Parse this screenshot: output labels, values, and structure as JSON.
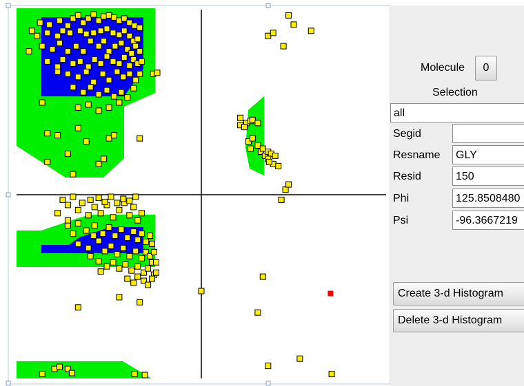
{
  "panel": {
    "molecule_label": "Molecule",
    "molecule_button": "0",
    "selection_label": "Selection",
    "selection_value": "all",
    "segid_label": "Segid",
    "segid_value": "",
    "resname_label": "Resname",
    "resname_value": "GLY",
    "resid_label": "Resid",
    "resid_value": "150",
    "phi_label": "Phi",
    "phi_value": "125.8508480",
    "psi_label": "Psi",
    "psi_value": "-96.3667219",
    "create_button": "Create 3-d Histogram",
    "delete_button": "Delete 3-d Histogram"
  },
  "colors": {
    "allowed_region": "#00ee00",
    "favored_region": "#0000ee",
    "point_fill": "#ffee00",
    "point_stroke": "#000000",
    "highlight_point": "#ff0000",
    "axis": "#000000"
  },
  "plot": {
    "points": [
      [
        -157,
        168
      ],
      [
        -148,
        166
      ],
      [
        -138,
        170
      ],
      [
        -130,
        165
      ],
      [
        -125,
        172
      ],
      [
        -120,
        175
      ],
      [
        -115,
        168
      ],
      [
        -110,
        172
      ],
      [
        -105,
        176
      ],
      [
        -100,
        170
      ],
      [
        -95,
        174
      ],
      [
        -90,
        175
      ],
      [
        -85,
        173
      ],
      [
        -80,
        170
      ],
      [
        -75,
        172
      ],
      [
        -70,
        168
      ],
      [
        -65,
        165
      ],
      [
        -60,
        163
      ],
      [
        -165,
        160
      ],
      [
        -160,
        155
      ],
      [
        -150,
        158
      ],
      [
        -140,
        155
      ],
      [
        -135,
        160
      ],
      [
        -128,
        158
      ],
      [
        -118,
        160
      ],
      [
        -112,
        157
      ],
      [
        -105,
        158
      ],
      [
        -98,
        160
      ],
      [
        -92,
        162
      ],
      [
        -86,
        158
      ],
      [
        -80,
        156
      ],
      [
        -75,
        160
      ],
      [
        -70,
        155
      ],
      [
        -66,
        150
      ],
      [
        -62,
        152
      ],
      [
        -168,
        140
      ],
      [
        -155,
        145
      ],
      [
        -145,
        142
      ],
      [
        -138,
        148
      ],
      [
        -130,
        140
      ],
      [
        -122,
        145
      ],
      [
        -115,
        140
      ],
      [
        -108,
        150
      ],
      [
        -100,
        145
      ],
      [
        -95,
        150
      ],
      [
        -90,
        140
      ],
      [
        -84,
        145
      ],
      [
        -78,
        148
      ],
      [
        -72,
        142
      ],
      [
        -68,
        138
      ],
      [
        -64,
        145
      ],
      [
        -60,
        140
      ],
      [
        -150,
        130
      ],
      [
        -140,
        125
      ],
      [
        -135,
        132
      ],
      [
        -125,
        128
      ],
      [
        -118,
        130
      ],
      [
        -110,
        125
      ],
      [
        -104,
        132
      ],
      [
        -98,
        128
      ],
      [
        -92,
        135
      ],
      [
        -86,
        130
      ],
      [
        -80,
        128
      ],
      [
        -75,
        134
      ],
      [
        -70,
        126
      ],
      [
        -66,
        132
      ],
      [
        -62,
        128
      ],
      [
        -58,
        130
      ],
      [
        -140,
        120
      ],
      [
        -130,
        118
      ],
      [
        -120,
        115
      ],
      [
        -112,
        120
      ],
      [
        -105,
        110
      ],
      [
        -96,
        118
      ],
      [
        -90,
        112
      ],
      [
        -82,
        120
      ],
      [
        -76,
        115
      ],
      [
        -70,
        118
      ],
      [
        -64,
        112
      ],
      [
        -60,
        118
      ],
      [
        -125,
        105
      ],
      [
        -115,
        100
      ],
      [
        -108,
        105
      ],
      [
        -100,
        98
      ],
      [
        -92,
        102
      ],
      [
        -85,
        96
      ],
      [
        -78,
        100
      ],
      [
        -72,
        95
      ],
      [
        -66,
        104
      ],
      [
        -155,
        90
      ],
      [
        -120,
        85
      ],
      [
        -110,
        88
      ],
      [
        -100,
        82
      ],
      [
        -90,
        85
      ],
      [
        -80,
        90
      ],
      [
        -47,
        118
      ],
      [
        -43,
        119
      ],
      [
        -150,
        60
      ],
      [
        -140,
        58
      ],
      [
        -120,
        65
      ],
      [
        -112,
        52
      ],
      [
        -90,
        55
      ],
      [
        -85,
        58
      ],
      [
        -130,
        40
      ],
      [
        -100,
        30
      ],
      [
        -95,
        35
      ],
      [
        -150,
        32
      ],
      [
        -125,
        20
      ],
      [
        -60,
        55
      ],
      [
        -140,
        -18
      ],
      [
        -130,
        -10
      ],
      [
        -120,
        -15
      ],
      [
        -110,
        -20
      ],
      [
        -104,
        -12
      ],
      [
        -98,
        -18
      ],
      [
        -92,
        -10
      ],
      [
        -86,
        -22
      ],
      [
        -80,
        -15
      ],
      [
        -75,
        -8
      ],
      [
        -70,
        -20
      ],
      [
        -66,
        -12
      ],
      [
        -62,
        -25
      ],
      [
        -58,
        -18
      ],
      [
        -135,
        -5
      ],
      [
        -125,
        -2
      ],
      [
        -116,
        -8
      ],
      [
        -108,
        -5
      ],
      [
        -100,
        -3
      ],
      [
        -94,
        -7
      ],
      [
        -88,
        -2
      ],
      [
        -82,
        -8
      ],
      [
        -76,
        -4
      ],
      [
        -70,
        -6
      ],
      [
        -64,
        -2
      ],
      [
        -130,
        -30
      ],
      [
        -120,
        -28
      ],
      [
        -112,
        -35
      ],
      [
        -104,
        -30
      ],
      [
        -96,
        -38
      ],
      [
        -90,
        -32
      ],
      [
        -84,
        -40
      ],
      [
        -78,
        -34
      ],
      [
        -72,
        -42
      ],
      [
        -66,
        -36
      ],
      [
        -62,
        -44
      ],
      [
        -58,
        -38
      ],
      [
        -54,
        -46
      ],
      [
        -120,
        -48
      ],
      [
        -110,
        -52
      ],
      [
        -100,
        -45
      ],
      [
        -94,
        -55
      ],
      [
        -88,
        -50
      ],
      [
        -82,
        -58
      ],
      [
        -76,
        -52
      ],
      [
        -70,
        -60
      ],
      [
        -64,
        -55
      ],
      [
        -58,
        -62
      ],
      [
        -54,
        -56
      ],
      [
        -50,
        -60
      ],
      [
        -100,
        -65
      ],
      [
        -92,
        -70
      ],
      [
        -86,
        -66
      ],
      [
        -80,
        -72
      ],
      [
        -74,
        -68
      ],
      [
        -68,
        -74
      ],
      [
        -62,
        -70
      ],
      [
        -56,
        -76
      ],
      [
        -52,
        -72
      ],
      [
        -48,
        -66
      ],
      [
        -46,
        -78
      ],
      [
        -125,
        -38
      ],
      [
        -130,
        -25
      ],
      [
        -105,
        -40
      ],
      [
        -108,
        -60
      ],
      [
        -98,
        -75
      ],
      [
        -72,
        -82
      ],
      [
        -66,
        -86
      ],
      [
        -62,
        -80
      ],
      [
        -56,
        -84
      ],
      [
        -52,
        -88
      ],
      [
        -48,
        -82
      ],
      [
        -44,
        -76
      ],
      [
        -44,
        -66
      ],
      [
        -46,
        -56
      ],
      [
        -48,
        -48
      ],
      [
        -50,
        -40
      ],
      [
        -80,
        -100
      ],
      [
        -60,
        -105
      ],
      [
        -120,
        -110
      ],
      [
        -155,
        -175
      ],
      [
        -143,
        -170
      ],
      [
        -138,
        -168
      ],
      [
        -130,
        -170
      ],
      [
        -126,
        -174
      ],
      [
        -65,
        -175
      ],
      [
        -55,
        -176
      ],
      [
        0,
        -94
      ],
      [
        65,
        155
      ],
      [
        70,
        158
      ],
      [
        85,
        175
      ],
      [
        90,
        166
      ],
      [
        107,
        160
      ],
      [
        80,
        145
      ],
      [
        38,
        75
      ],
      [
        38,
        68
      ],
      [
        44,
        70
      ],
      [
        48,
        72
      ],
      [
        42,
        66
      ],
      [
        50,
        73
      ],
      [
        55,
        70
      ],
      [
        46,
        52
      ],
      [
        50,
        55
      ],
      [
        55,
        48
      ],
      [
        48,
        45
      ],
      [
        58,
        42
      ],
      [
        60,
        45
      ],
      [
        62,
        38
      ],
      [
        65,
        42
      ],
      [
        68,
        40
      ],
      [
        72,
        38
      ],
      [
        65,
        35
      ],
      [
        70,
        30
      ],
      [
        75,
        28
      ],
      [
        66,
        32
      ],
      [
        82,
        5
      ],
      [
        78,
        -5
      ],
      [
        85,
        10
      ],
      [
        60,
        -80
      ],
      [
        55,
        -115
      ],
      [
        127,
        -175
      ],
      [
        65,
        -167
      ],
      [
        96,
        -160
      ]
    ],
    "highlight": [
      125.85,
      -96.37
    ]
  }
}
